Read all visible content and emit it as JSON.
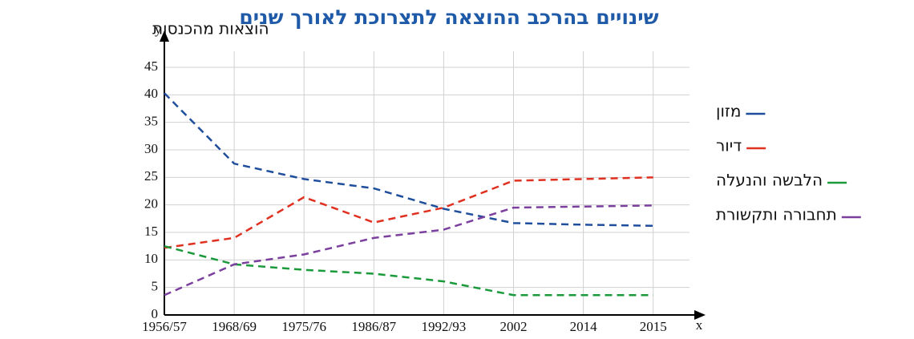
{
  "chart_data": {
    "type": "line",
    "title": "שינויים בהרכב ההוצאה לתצרוכת לאורך שנים",
    "y_label": "הוצאות מהכנסות",
    "y_axis_letter": "y",
    "x_axis_letter": "x",
    "categories": [
      "1956/57",
      "1968/69",
      "1975/76",
      "1986/87",
      "1992/93",
      "2002",
      "2014",
      "2015"
    ],
    "series": [
      {
        "name": "מזון",
        "color": "#1f4e9c",
        "values": [
          40.3,
          27.5,
          24.7,
          23,
          19.3,
          16.7,
          16.4,
          16.2
        ]
      },
      {
        "name": "דיור",
        "color": "#e03020",
        "values": [
          12.2,
          14,
          21.4,
          16.8,
          19.5,
          24.4,
          24.7,
          25
        ]
      },
      {
        "name": "הלבשה והנעלה",
        "color": "#1a9a3a",
        "values": [
          12.5,
          9.2,
          8.2,
          7.5,
          6.1,
          3.6,
          3.6,
          3.6
        ]
      },
      {
        "name": "תחבורה ותקשורת",
        "color": "#7b3f9e",
        "values": [
          3.6,
          9.2,
          11,
          14,
          15.5,
          19.5,
          19.7,
          19.9
        ]
      }
    ],
    "ylim": [
      0,
      45
    ],
    "yticks": [
      0,
      5,
      10,
      15,
      20,
      25,
      30,
      35,
      40,
      45
    ],
    "grid": true,
    "dashed": true,
    "legend": "right"
  }
}
